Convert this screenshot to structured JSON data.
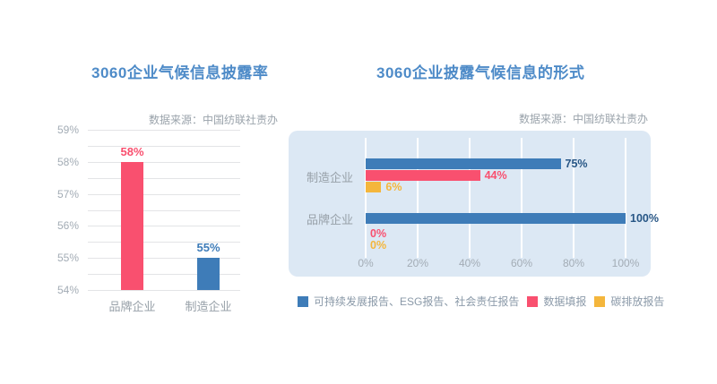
{
  "colors": {
    "title": "#4E8BC8",
    "axis": "#A3ACB5",
    "cat": "#97A0A8",
    "legend": "#8A99A8",
    "muted": "#9AA3AB",
    "grid": "#E3E4E6",
    "panel": "#DCE8F4",
    "panelgrid": "#FFFFFF",
    "blue": "#3E7CB8",
    "pink": "#F9506F",
    "yellow": "#F4B63C",
    "navy": "#275685"
  },
  "chart_data": [
    {
      "type": "bar",
      "title": "3060企业气候信息披露率",
      "source": "数据来源：中国纺联社责办",
      "categories": [
        "品牌企业",
        "制造企业"
      ],
      "values": [
        58,
        55
      ],
      "unit": "%",
      "bar_colors": [
        "#F9506F",
        "#3E7CB8"
      ],
      "label_colors": [
        "#F9506F",
        "#3E7CB8"
      ],
      "ylim": [
        54,
        59
      ],
      "ytick_step": 1,
      "grid_step": 0.5,
      "grid": true,
      "legend_position": "none"
    },
    {
      "type": "bar-horizontal",
      "title": "3060企业披露气候信息的形式",
      "source": "数据来源：中国纺联社责办",
      "categories": [
        "制造企业",
        "品牌企业"
      ],
      "series": [
        {
          "name": "可持续发展报告、ESG报告、社会责任报告",
          "color": "#3E7CB8",
          "label_color": "#275685",
          "values": [
            75,
            100
          ]
        },
        {
          "name": "数据填报",
          "color": "#F9506F",
          "label_color": "#F9506F",
          "values": [
            44,
            0
          ]
        },
        {
          "name": "碳排放报告",
          "color": "#F4B63C",
          "label_color": "#F4B63C",
          "values": [
            6,
            0
          ]
        }
      ],
      "unit": "%",
      "xlim": [
        0,
        100
      ],
      "xticks": [
        0,
        20,
        40,
        60,
        80,
        100
      ],
      "grid": true,
      "legend_position": "bottom"
    }
  ]
}
